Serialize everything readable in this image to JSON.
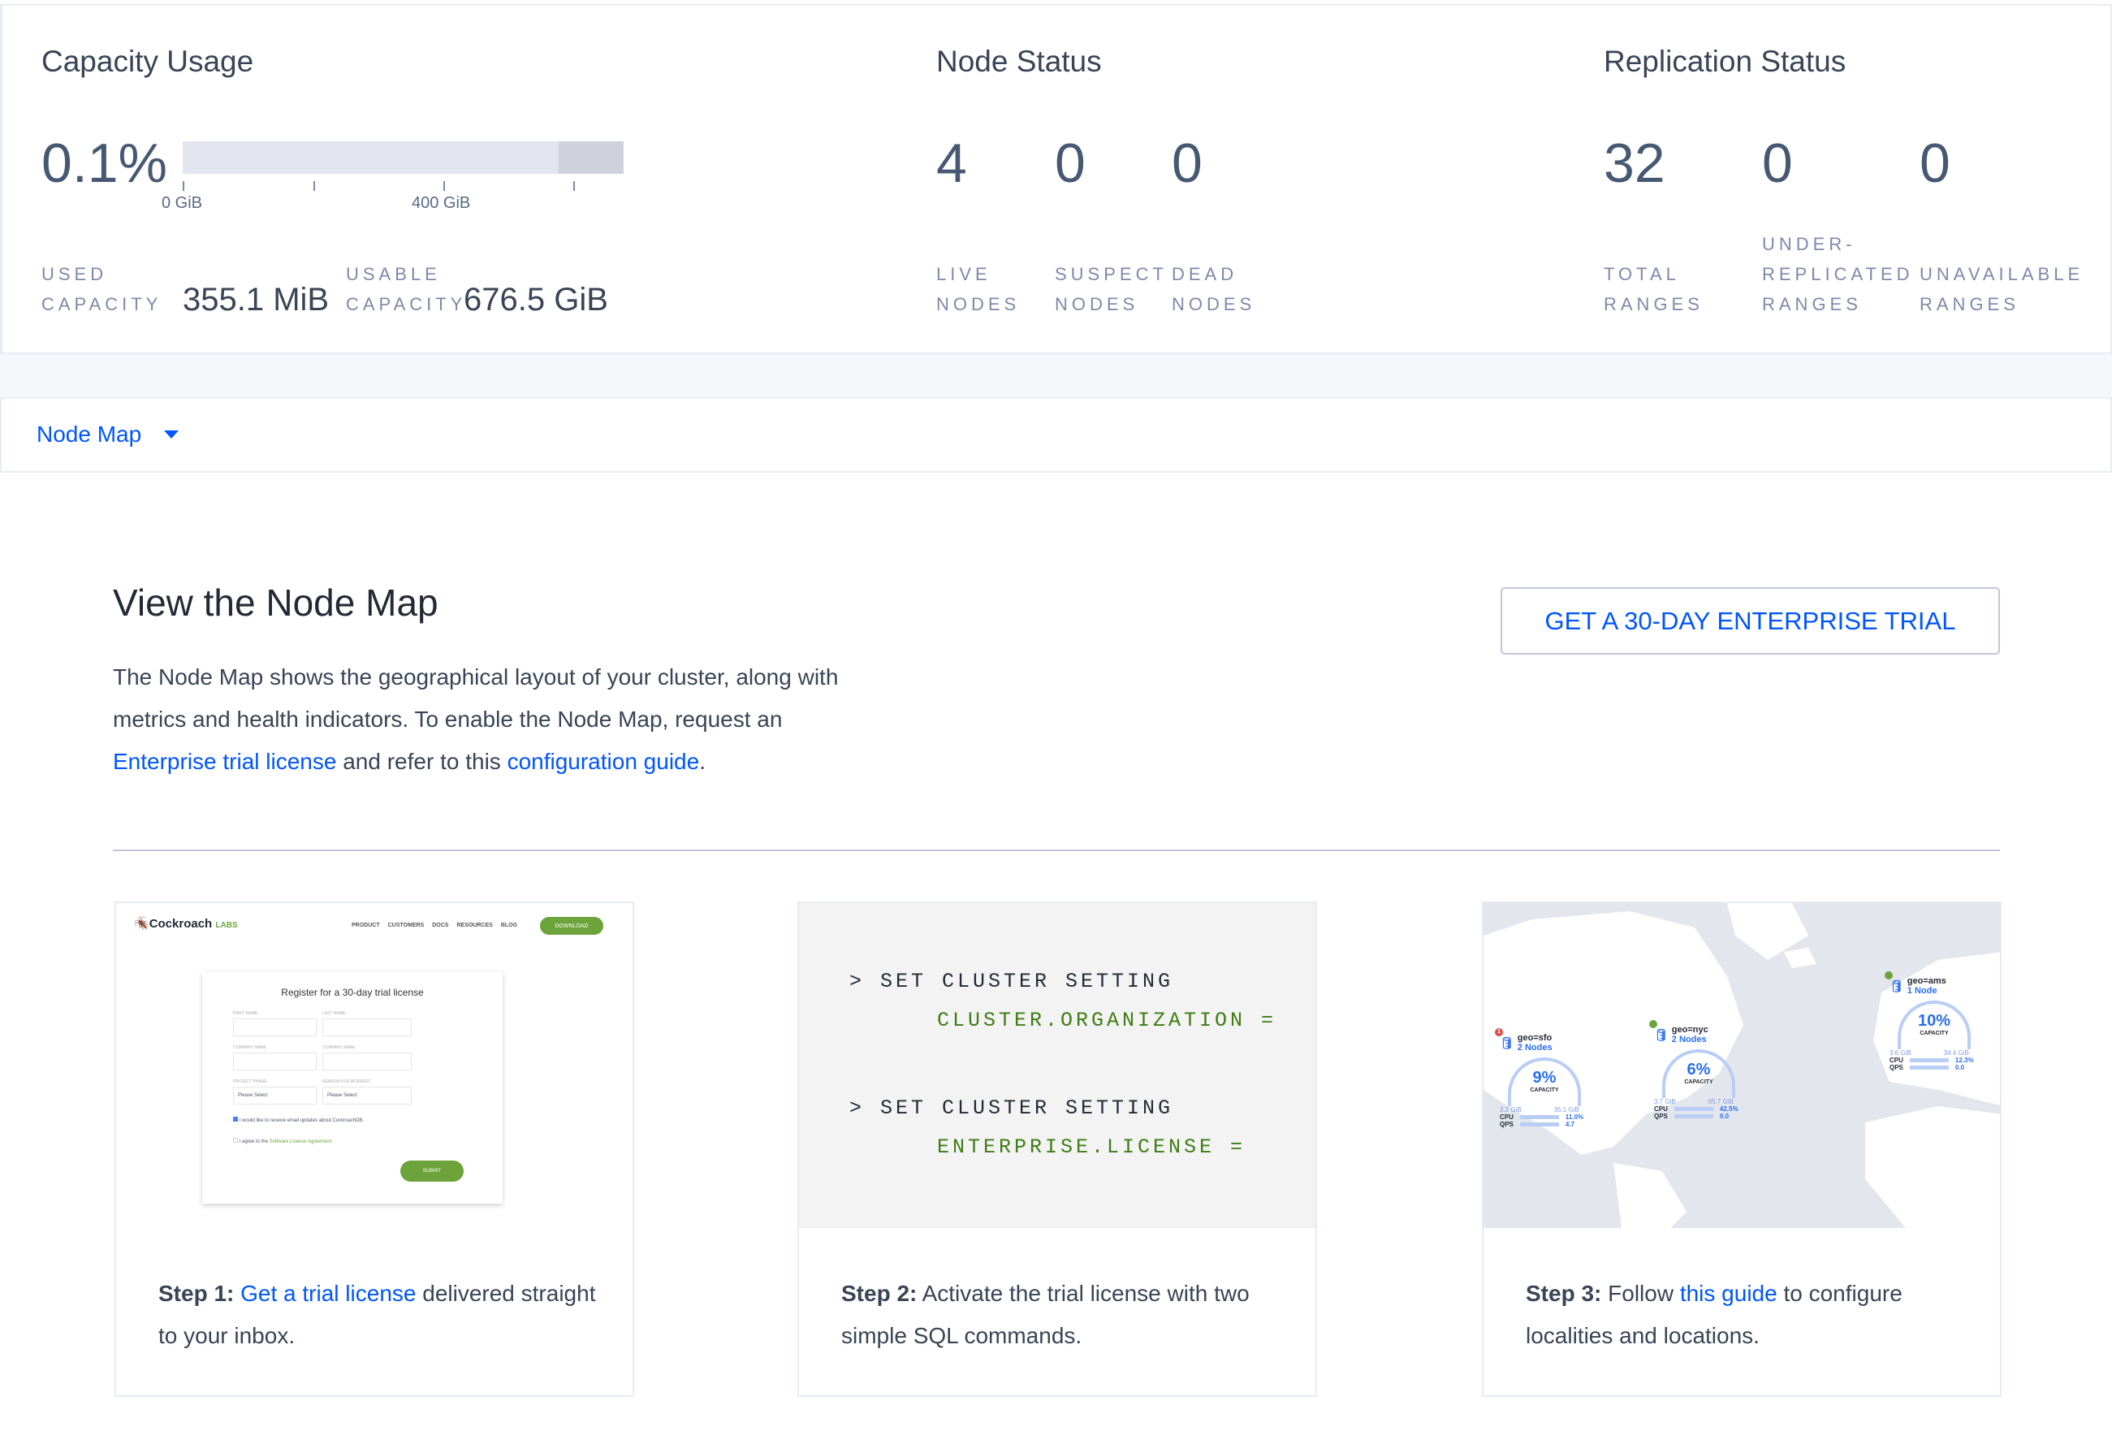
{
  "capacity": {
    "title": "Capacity Usage",
    "percent": "0.1%",
    "usage_fraction": 0.001,
    "ticks": [
      "0 GiB",
      "400 GiB"
    ],
    "used_label": [
      "USED",
      "CAPACITY"
    ],
    "used_value": "355.1 MiB",
    "usable_label": [
      "USABLE",
      "CAPACITY"
    ],
    "usable_value": "676.5 GiB"
  },
  "node_status": {
    "title": "Node Status",
    "stats": [
      {
        "value": "4",
        "label": [
          "LIVE",
          "NODES"
        ]
      },
      {
        "value": "0",
        "label": [
          "SUSPECT",
          "NODES"
        ]
      },
      {
        "value": "0",
        "label": [
          "DEAD",
          "NODES"
        ]
      }
    ]
  },
  "replication": {
    "title": "Replication Status",
    "stats": [
      {
        "value": "32",
        "label": [
          "",
          "TOTAL",
          "RANGES"
        ]
      },
      {
        "value": "0",
        "label": [
          "UNDER-",
          "REPLICATED",
          "RANGES"
        ]
      },
      {
        "value": "0",
        "label": [
          "",
          "UNAVAILABLE",
          "RANGES"
        ]
      }
    ]
  },
  "dropdown": {
    "label": "Node Map"
  },
  "main": {
    "heading": "View the Node Map",
    "desc_1": "The Node Map shows the geographical layout of your cluster, along with metrics and health indicators. To enable the Node Map, request an ",
    "desc_link1": "Enterprise trial license",
    "desc_2": " and refer to this ",
    "desc_link2": "configuration guide",
    "desc_3": ".",
    "trial_button": "GET A 30-DAY ENTERPRISE TRIAL"
  },
  "steps": [
    {
      "label": "Step 1:",
      "link": "Get a trial license",
      "text": " delivered straight to your inbox.",
      "preview": {
        "logo": "Cockroach",
        "logo_suffix": "LABS",
        "nav": [
          "PRODUCT",
          "CUSTOMERS",
          "DOCS",
          "RESOURCES",
          "BLOG"
        ],
        "download": "DOWNLOAD",
        "form_title": "Register for a 30-day trial license",
        "fields": [
          "FIRST NAME",
          "LAST NAME",
          "COMPANY NAME",
          "COMPANY EMAIL",
          "PROJECT PHASE",
          "REASON FOR INTEREST"
        ],
        "select_placeholder": "Please Select",
        "check1": "I would like to receive email updates about CockroachDB.",
        "check2": "I agree to the ",
        "check2_link": "Software License Agreement.",
        "submit": "SUBMIT"
      }
    },
    {
      "label": "Step 2:",
      "text": " Activate the trial license with two simple SQL commands.",
      "code": [
        {
          "cmd": "> SET CLUSTER SETTING",
          "arg": "CLUSTER.ORGANIZATION ="
        },
        {
          "cmd": "> SET CLUSTER SETTING",
          "arg": "ENTERPRISE.LICENSE ="
        }
      ]
    },
    {
      "label": "Step 3:",
      "pre": " Follow ",
      "link": "this guide",
      "text": " to configure localities and locations.",
      "map": [
        {
          "name": "geo=sfo",
          "nodes": "2 Nodes",
          "pct": "9%",
          "cap": "CAPACITY",
          "used": "3.2 GiB",
          "total": "35.1 GiB",
          "cpu": "11.0%",
          "qps": "4.7",
          "alert": "1"
        },
        {
          "name": "geo=nyc",
          "nodes": "2 Nodes",
          "pct": "6%",
          "cap": "CAPACITY",
          "used": "3.7 GiB",
          "total": "65.7 GiB",
          "cpu": "42.5%",
          "qps": "0.0"
        },
        {
          "name": "geo=ams",
          "nodes": "1 Node",
          "pct": "10%",
          "cap": "CAPACITY",
          "used": "3.6 GiB",
          "total": "34.4 GiB",
          "cpu": "12.3%",
          "qps": "0.0"
        }
      ],
      "cpu_label": "CPU",
      "qps_label": "QPS"
    }
  ]
}
